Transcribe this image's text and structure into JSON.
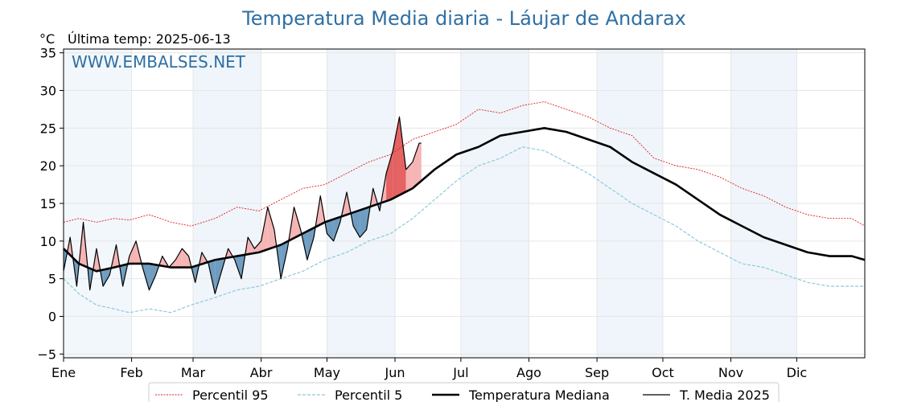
{
  "chart_data": {
    "type": "line",
    "title": "Temperatura Media diaria - Láujar de Andarax",
    "unit_label": "°C",
    "last_temp_label": "Última temp: 2025-06-13",
    "watermark": "WWW.EMBALSES.NET",
    "ylim": [
      -5.5,
      35.5
    ],
    "yticks": [
      -5,
      0,
      5,
      10,
      15,
      20,
      25,
      30,
      35
    ],
    "ytick_labels": [
      "−5",
      "0",
      "5",
      "10",
      "15",
      "20",
      "25",
      "30",
      "35"
    ],
    "months": [
      "Ene",
      "Feb",
      "Mar",
      "Abr",
      "May",
      "Jun",
      "Jul",
      "Ago",
      "Sep",
      "Oct",
      "Nov",
      "Dic"
    ],
    "month_start_days": [
      1,
      32,
      60,
      91,
      121,
      152,
      182,
      213,
      244,
      274,
      305,
      335
    ],
    "x_range_days": [
      1,
      366
    ],
    "grid": true,
    "legend_position": "bottom-center",
    "colors": {
      "p95": "#e31a1c",
      "p5": "#8ec8dc",
      "median": "#000000",
      "current": "#000000",
      "above_fill": "#f4a8a8",
      "above_strong": "#e04848",
      "below_fill": "#5f93ba",
      "band": "#dbe8f4"
    },
    "legend": [
      {
        "key": "p95",
        "label": "Percentil 95"
      },
      {
        "key": "p5",
        "label": "Percentil 5"
      },
      {
        "key": "median",
        "label": "Temperatura Mediana"
      },
      {
        "key": "current",
        "label": "T. Media 2025"
      }
    ],
    "series": [
      {
        "name": "Percentil 95",
        "key": "p95",
        "x": [
          1,
          8,
          16,
          24,
          31,
          40,
          50,
          59,
          70,
          80,
          90,
          100,
          110,
          120,
          130,
          140,
          150,
          160,
          170,
          180,
          190,
          200,
          210,
          220,
          230,
          240,
          250,
          260,
          270,
          280,
          290,
          300,
          310,
          320,
          330,
          340,
          350,
          360,
          366
        ],
        "y": [
          12.5,
          13.0,
          12.5,
          13.0,
          12.8,
          13.5,
          12.5,
          12.0,
          13.0,
          14.5,
          14.0,
          15.5,
          17.0,
          17.5,
          19.0,
          20.5,
          21.5,
          23.5,
          24.5,
          25.5,
          27.5,
          27.0,
          28.0,
          28.5,
          27.5,
          26.5,
          25.0,
          24.0,
          21.0,
          20.0,
          19.5,
          18.5,
          17.0,
          16.0,
          14.5,
          13.5,
          13.0,
          13.0,
          12.0
        ]
      },
      {
        "name": "Percentil 5",
        "key": "p5",
        "x": [
          1,
          8,
          16,
          24,
          31,
          40,
          50,
          59,
          70,
          80,
          90,
          100,
          110,
          120,
          130,
          140,
          150,
          160,
          170,
          180,
          190,
          200,
          210,
          220,
          230,
          240,
          250,
          260,
          270,
          280,
          290,
          300,
          310,
          320,
          330,
          340,
          350,
          360,
          366
        ],
        "y": [
          5.0,
          3.0,
          1.5,
          1.0,
          0.5,
          1.0,
          0.5,
          1.5,
          2.5,
          3.5,
          4.0,
          5.0,
          6.0,
          7.5,
          8.5,
          10.0,
          11.0,
          13.0,
          15.5,
          18.0,
          20.0,
          21.0,
          22.5,
          22.0,
          20.5,
          19.0,
          17.0,
          15.0,
          13.5,
          12.0,
          10.0,
          8.5,
          7.0,
          6.5,
          5.5,
          4.5,
          4.0,
          4.0,
          4.0
        ]
      },
      {
        "name": "Temperatura Mediana",
        "key": "median",
        "x": [
          1,
          8,
          16,
          24,
          31,
          40,
          50,
          59,
          70,
          80,
          90,
          100,
          110,
          120,
          130,
          140,
          150,
          160,
          170,
          180,
          190,
          200,
          210,
          220,
          230,
          240,
          250,
          260,
          270,
          280,
          290,
          300,
          310,
          320,
          330,
          340,
          350,
          360,
          366
        ],
        "y": [
          9.0,
          7.0,
          6.0,
          6.5,
          7.0,
          7.0,
          6.5,
          6.5,
          7.5,
          8.0,
          8.5,
          9.5,
          11.0,
          12.5,
          13.5,
          14.5,
          15.5,
          17.0,
          19.5,
          21.5,
          22.5,
          24.0,
          24.5,
          25.0,
          24.5,
          23.5,
          22.5,
          20.5,
          19.0,
          17.5,
          15.5,
          13.5,
          12.0,
          10.5,
          9.5,
          8.5,
          8.0,
          8.0,
          7.5
        ]
      },
      {
        "name": "T. Media 2025",
        "key": "current",
        "x": [
          1,
          4,
          7,
          10,
          13,
          16,
          19,
          22,
          25,
          28,
          31,
          34,
          37,
          40,
          43,
          46,
          49,
          52,
          55,
          58,
          61,
          64,
          67,
          70,
          73,
          76,
          79,
          82,
          85,
          88,
          91,
          94,
          97,
          100,
          103,
          106,
          109,
          112,
          115,
          118,
          121,
          124,
          127,
          130,
          133,
          136,
          139,
          142,
          145,
          148,
          151,
          154,
          157,
          160,
          163,
          164
        ],
        "y": [
          6.0,
          10.5,
          4.0,
          12.5,
          3.5,
          9.0,
          4.0,
          5.5,
          9.5,
          4.0,
          8.0,
          10.0,
          6.5,
          3.5,
          5.5,
          8.0,
          6.5,
          7.5,
          9.0,
          8.0,
          4.5,
          8.5,
          7.0,
          3.0,
          6.0,
          9.0,
          7.5,
          5.0,
          10.5,
          9.0,
          10.0,
          14.5,
          11.5,
          5.0,
          9.0,
          14.5,
          11.5,
          7.5,
          10.5,
          16.0,
          11.0,
          10.0,
          12.5,
          16.5,
          12.0,
          10.5,
          11.5,
          17.0,
          14.0,
          19.0,
          22.0,
          26.5,
          19.5,
          20.5,
          23.0,
          23.0
        ]
      }
    ]
  }
}
